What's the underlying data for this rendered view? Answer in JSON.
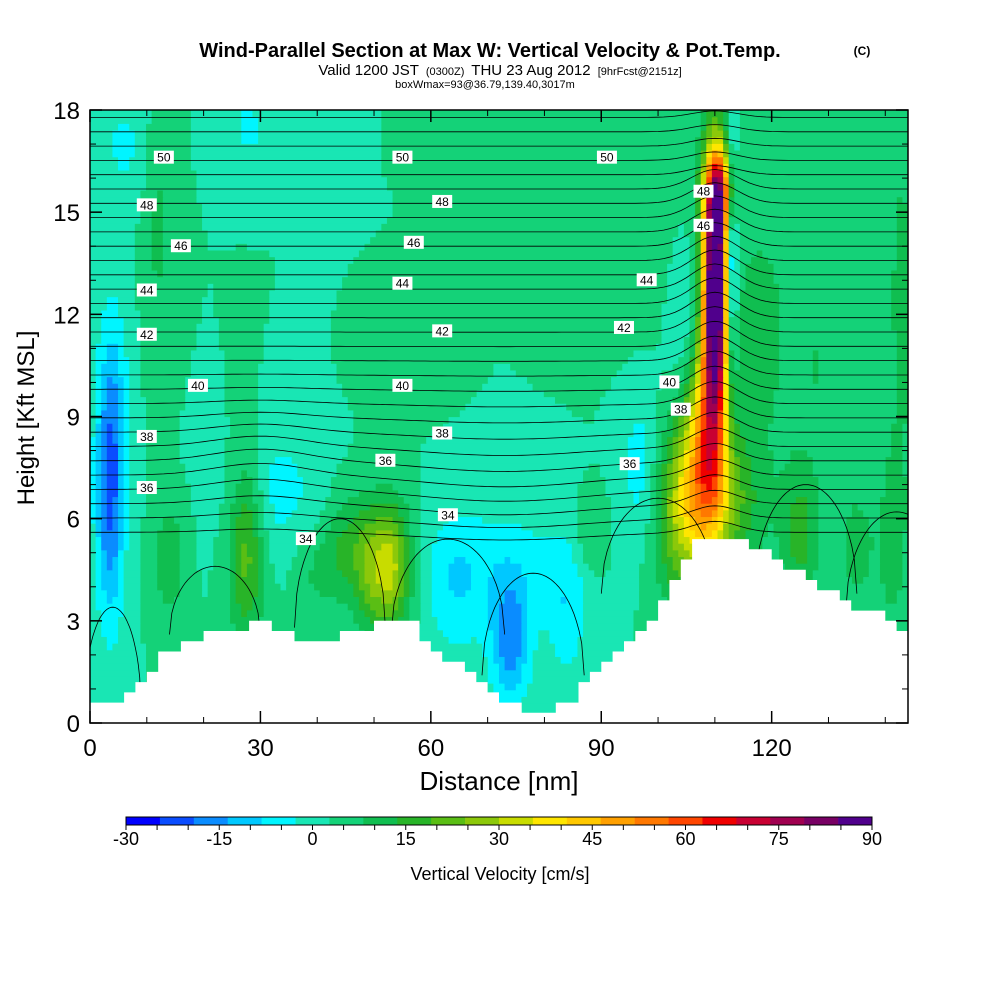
{
  "title": {
    "main": "Wind-Parallel Section at Max W: Vertical Velocity & Pot.Temp.",
    "copyright": "(C)",
    "valid_prefix": "Valid 1200 JST",
    "valid_utc": "(0300Z)",
    "valid_date": "THU 23 Aug 2012",
    "forecast": "[9hrFcst@2151z]",
    "box": "boxWmax=93@36.79,139.40,3017m"
  },
  "chart_data": {
    "type": "heatmap",
    "xlabel": "Distance [nm]",
    "ylabel": "Height [Kft MSL]",
    "xlim": [
      0,
      144
    ],
    "ylim": [
      0,
      18
    ],
    "x_ticks": [
      "0",
      "30",
      "60",
      "90",
      "120"
    ],
    "x_tick_values": [
      0,
      30,
      60,
      90,
      120
    ],
    "y_ticks": [
      "0",
      "3",
      "6",
      "9",
      "12",
      "15",
      "18"
    ],
    "y_tick_values": [
      0,
      3,
      6,
      9,
      12,
      15,
      18
    ],
    "colorbar": {
      "label": "Vertical Velocity [cm/s]",
      "min": -30,
      "max": 90,
      "step": 5,
      "tick_labels": [
        "-30",
        "-15",
        "0",
        "15",
        "30",
        "45",
        "60",
        "75",
        "90"
      ],
      "tick_values": [
        -30,
        -15,
        0,
        15,
        30,
        45,
        60,
        75,
        90
      ],
      "colors": [
        "#0000ff",
        "#0a4cff",
        "#0a8cff",
        "#00c8ff",
        "#00f5ff",
        "#19e6b4",
        "#14d278",
        "#10be50",
        "#28b428",
        "#5abe14",
        "#8cc80a",
        "#c8dc00",
        "#ffe600",
        "#ffc800",
        "#ffa000",
        "#ff7800",
        "#ff4600",
        "#f00000",
        "#c80032",
        "#a00050",
        "#780064",
        "#50008c"
      ]
    },
    "terrain_kft": [
      [
        0,
        0.7
      ],
      [
        5,
        0.7
      ],
      [
        7,
        1.0
      ],
      [
        10,
        1.4
      ],
      [
        12,
        2.0
      ],
      [
        16,
        2.3
      ],
      [
        19,
        2.6
      ],
      [
        25,
        2.8
      ],
      [
        30,
        3.0
      ],
      [
        33,
        2.7
      ],
      [
        36,
        2.3
      ],
      [
        39,
        2.3
      ],
      [
        43,
        2.5
      ],
      [
        46,
        2.7
      ],
      [
        49,
        2.9
      ],
      [
        56,
        2.9
      ],
      [
        58,
        2.5
      ],
      [
        60,
        2.2
      ],
      [
        63,
        1.8
      ],
      [
        66,
        1.5
      ],
      [
        69,
        1.0
      ],
      [
        72,
        0.7
      ],
      [
        75,
        0.4
      ],
      [
        80,
        0.3
      ],
      [
        84,
        0.7
      ],
      [
        86,
        1.1
      ],
      [
        88,
        1.5
      ],
      [
        91,
        2.0
      ],
      [
        94,
        2.4
      ],
      [
        96,
        2.7
      ],
      [
        98,
        3.1
      ],
      [
        100,
        3.6
      ],
      [
        102,
        4.1
      ],
      [
        104,
        4.8
      ],
      [
        106,
        5.3
      ],
      [
        108,
        5.5
      ],
      [
        112,
        5.5
      ],
      [
        115,
        5.3
      ],
      [
        117,
        5.1
      ],
      [
        120,
        4.9
      ],
      [
        122,
        4.6
      ],
      [
        125,
        4.3
      ],
      [
        128,
        4.0
      ],
      [
        131,
        3.7
      ],
      [
        135,
        3.3
      ],
      [
        139,
        3.1
      ],
      [
        142,
        2.8
      ],
      [
        144,
        2.7
      ]
    ],
    "updrafts": [
      {
        "x": 110,
        "z": 12.8,
        "sx": 1.5,
        "sz": 2.6,
        "w": 92
      },
      {
        "x": 108.5,
        "z": 8.2,
        "sx": 2.6,
        "sz": 2.2,
        "w": 38
      },
      {
        "x": 111,
        "z": 15.6,
        "sx": 1.6,
        "sz": 0.8,
        "w": 30
      },
      {
        "x": 104,
        "z": 6.3,
        "sx": 3.2,
        "sz": 1.8,
        "w": 22
      },
      {
        "x": 112,
        "z": 6.5,
        "sx": 4.5,
        "sz": 1.5,
        "w": 16
      },
      {
        "x": 113,
        "z": 13.5,
        "sx": 0.7,
        "sz": 2.4,
        "w": -22
      },
      {
        "x": 109,
        "z": 15.4,
        "sx": 3.0,
        "sz": 1.2,
        "w": 6
      },
      {
        "x": 3.5,
        "z": 6.4,
        "sx": 1.8,
        "sz": 2.6,
        "w": -18
      },
      {
        "x": 4,
        "z": 9.5,
        "sx": 2.0,
        "sz": 2.4,
        "w": -9
      },
      {
        "x": 14,
        "z": 4.8,
        "sx": 1.8,
        "sz": 1.1,
        "w": 10
      },
      {
        "x": 27.5,
        "z": 5.2,
        "sx": 2.2,
        "sz": 1.9,
        "w": 18
      },
      {
        "x": 32.5,
        "z": 6.8,
        "sx": 6.0,
        "sz": 1.4,
        "w": -7
      },
      {
        "x": 40,
        "z": 4.5,
        "sx": 3.0,
        "sz": 0.9,
        "w": 6
      },
      {
        "x": 53,
        "z": 4.6,
        "sx": 2.4,
        "sz": 1.3,
        "w": 26
      },
      {
        "x": 49,
        "z": 4.6,
        "sx": 2.0,
        "sz": 1.3,
        "w": 14
      },
      {
        "x": 45,
        "z": 5.2,
        "sx": 2.5,
        "sz": 1.1,
        "w": 10
      },
      {
        "x": 64,
        "z": 4.0,
        "sx": 3.5,
        "sz": 1.6,
        "w": -7
      },
      {
        "x": 74,
        "z": 2.4,
        "sx": 2.5,
        "sz": 1.3,
        "w": -17
      },
      {
        "x": 73,
        "z": 4.6,
        "sx": 8.0,
        "sz": 1.4,
        "w": -7
      },
      {
        "x": 84,
        "z": 3.4,
        "sx": 2.5,
        "sz": 1.5,
        "w": -8
      },
      {
        "x": 97,
        "z": 7.6,
        "sx": 2.5,
        "sz": 1.6,
        "w": -8
      },
      {
        "x": 88,
        "z": 5.5,
        "sx": 2.0,
        "sz": 0.8,
        "w": 6
      },
      {
        "x": 125,
        "z": 5.6,
        "sx": 2.5,
        "sz": 1.5,
        "w": 12
      },
      {
        "x": 135,
        "z": 5.2,
        "sx": 2.0,
        "sz": 1.2,
        "w": 8
      },
      {
        "x": 141,
        "z": 5.2,
        "sx": 2.0,
        "sz": 2.0,
        "w": 6
      },
      {
        "x": 118,
        "z": 11.5,
        "sx": 3.5,
        "sz": 2.4,
        "w": 8
      },
      {
        "x": 105,
        "z": 12.0,
        "sx": 2.5,
        "sz": 2.0,
        "w": -7
      },
      {
        "x": 128,
        "z": 10.5,
        "sx": 3.0,
        "sz": 2.0,
        "w": 5
      },
      {
        "x": 143,
        "z": 12.5,
        "sx": 2.5,
        "sz": 5.0,
        "w": 6
      },
      {
        "x": 95,
        "z": 13.8,
        "sx": 6.0,
        "sz": 1.6,
        "w": 5
      },
      {
        "x": 12,
        "z": 14.5,
        "sx": 1.8,
        "sz": 2.5,
        "w": 6
      },
      {
        "x": 6,
        "z": 17.0,
        "sx": 3.0,
        "sz": 1.2,
        "w": -6
      },
      {
        "x": 28,
        "z": 17.5,
        "sx": 3.0,
        "sz": 0.8,
        "w": -6
      },
      {
        "x": 55,
        "z": 10.2,
        "sx": 4.0,
        "sz": 0.7,
        "w": 5
      }
    ],
    "isentrope_labels": [
      {
        "text": "50",
        "x": 13,
        "z": 16.6
      },
      {
        "text": "50",
        "x": 55,
        "z": 16.6
      },
      {
        "text": "50",
        "x": 91,
        "z": 16.6
      },
      {
        "text": "48",
        "x": 10,
        "z": 15.2
      },
      {
        "text": "48",
        "x": 62,
        "z": 15.3
      },
      {
        "text": "48",
        "x": 108,
        "z": 15.6
      },
      {
        "text": "46",
        "x": 16,
        "z": 14.0
      },
      {
        "text": "46",
        "x": 57,
        "z": 14.1
      },
      {
        "text": "46",
        "x": 108,
        "z": 14.6
      },
      {
        "text": "44",
        "x": 10,
        "z": 12.7
      },
      {
        "text": "44",
        "x": 55,
        "z": 12.9
      },
      {
        "text": "44",
        "x": 98,
        "z": 13.0
      },
      {
        "text": "42",
        "x": 10,
        "z": 11.4
      },
      {
        "text": "42",
        "x": 62,
        "z": 11.5
      },
      {
        "text": "42",
        "x": 94,
        "z": 11.6
      },
      {
        "text": "40",
        "x": 19,
        "z": 9.9
      },
      {
        "text": "40",
        "x": 55,
        "z": 9.9
      },
      {
        "text": "40",
        "x": 102,
        "z": 10.0
      },
      {
        "text": "38",
        "x": 10,
        "z": 8.4
      },
      {
        "text": "38",
        "x": 62,
        "z": 8.5
      },
      {
        "text": "38",
        "x": 104,
        "z": 9.2
      },
      {
        "text": "36",
        "x": 10,
        "z": 6.9
      },
      {
        "text": "36",
        "x": 52,
        "z": 7.7
      },
      {
        "text": "36",
        "x": 95,
        "z": 7.6
      },
      {
        "text": "34",
        "x": 38,
        "z": 5.4
      },
      {
        "text": "34",
        "x": 63,
        "z": 6.1
      }
    ]
  }
}
